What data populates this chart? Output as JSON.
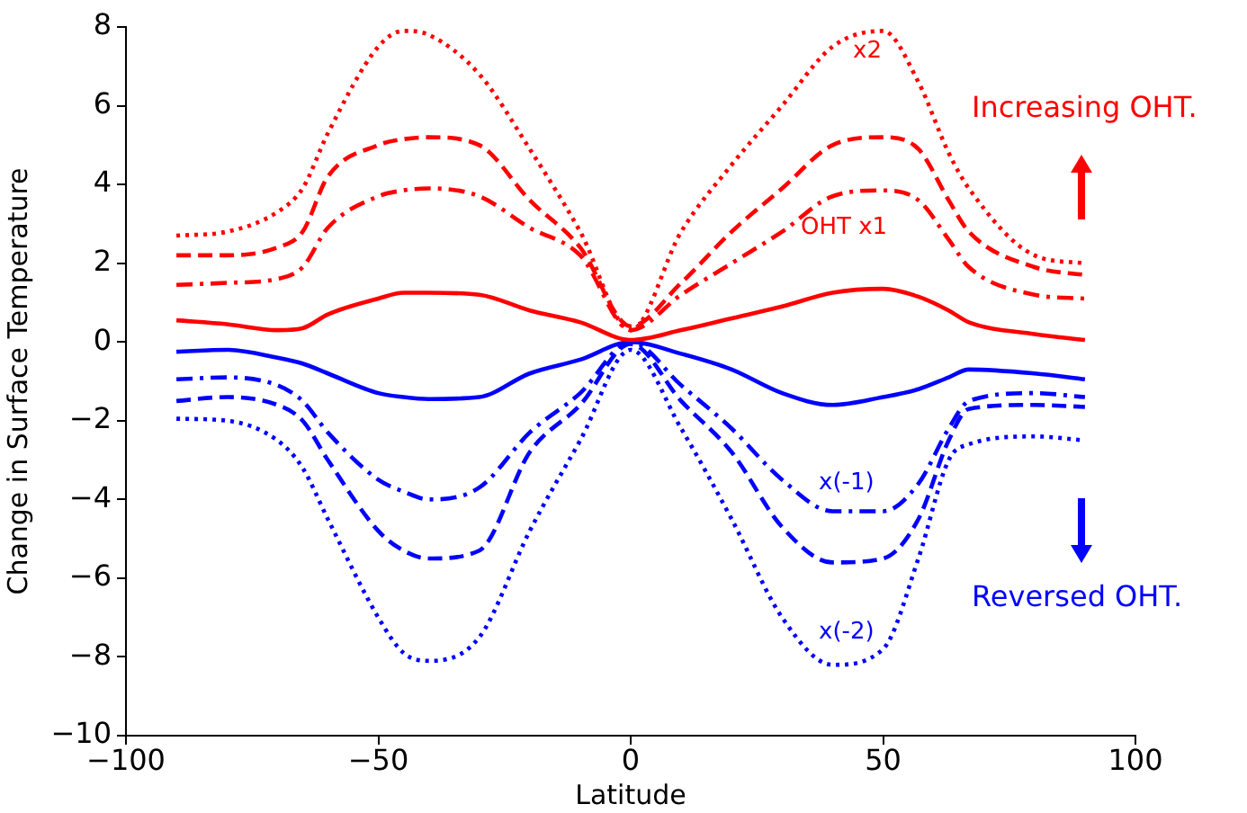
{
  "chart_data": {
    "type": "line",
    "xlabel": "Latitude",
    "ylabel": "Change in Surface Temperature",
    "xlim": [
      -100,
      100
    ],
    "xticks": [
      -100,
      -50,
      0,
      50,
      100
    ],
    "ylim": [
      -10,
      8
    ],
    "yticks": [
      -10,
      -8,
      -6,
      -4,
      -2,
      0,
      2,
      4,
      6,
      8
    ],
    "grid": false,
    "legend": false,
    "marker": "none",
    "x": [
      -90,
      -80,
      -70,
      -65,
      -60,
      -50,
      -45,
      -40,
      -30,
      -20,
      -10,
      0,
      10,
      20,
      30,
      40,
      50,
      57,
      63,
      67,
      80,
      90
    ],
    "series": [
      {
        "color": "#ff0000",
        "line_style": "solid",
        "values": [
          0.55,
          0.45,
          0.3,
          0.35,
          0.7,
          1.1,
          1.25,
          1.25,
          1.2,
          0.8,
          0.5,
          0.05,
          0.3,
          0.6,
          0.9,
          1.25,
          1.35,
          1.15,
          0.8,
          0.5,
          0.2,
          0.05
        ]
      },
      {
        "color": "#ff0000",
        "line_style": "dashdot",
        "values": [
          1.45,
          1.5,
          1.6,
          1.9,
          2.9,
          3.7,
          3.85,
          3.9,
          3.7,
          2.9,
          2.2,
          0.3,
          1.2,
          2.0,
          2.8,
          3.7,
          3.85,
          3.6,
          2.6,
          1.9,
          1.2,
          1.1
        ]
      },
      {
        "color": "#ff0000",
        "line_style": "dashed",
        "values": [
          2.2,
          2.2,
          2.4,
          2.8,
          4.2,
          5.0,
          5.15,
          5.2,
          5.0,
          3.6,
          2.4,
          0.4,
          1.5,
          2.8,
          3.9,
          5.0,
          5.2,
          4.9,
          3.6,
          2.8,
          1.9,
          1.7
        ]
      },
      {
        "color": "#ff0000",
        "line_style": "dotted",
        "values": [
          2.7,
          2.8,
          3.3,
          3.9,
          5.3,
          7.5,
          7.9,
          7.8,
          6.8,
          4.9,
          2.8,
          0.3,
          2.8,
          4.5,
          6.0,
          7.5,
          7.9,
          6.6,
          4.8,
          3.9,
          2.2,
          2.0
        ]
      },
      {
        "color": "#0000ff",
        "line_style": "solid",
        "values": [
          -0.25,
          -0.2,
          -0.4,
          -0.55,
          -0.8,
          -1.3,
          -1.4,
          -1.45,
          -1.4,
          -0.8,
          -0.45,
          0.0,
          -0.3,
          -0.7,
          -1.3,
          -1.6,
          -1.4,
          -1.2,
          -0.9,
          -0.7,
          -0.8,
          -0.95
        ]
      },
      {
        "color": "#0000ff",
        "line_style": "dashdot",
        "values": [
          -0.95,
          -0.9,
          -1.1,
          -1.5,
          -2.3,
          -3.5,
          -3.8,
          -4.0,
          -3.7,
          -2.3,
          -1.3,
          0.0,
          -1.1,
          -2.2,
          -3.5,
          -4.3,
          -4.3,
          -3.6,
          -2.2,
          -1.5,
          -1.3,
          -1.4
        ]
      },
      {
        "color": "#0000ff",
        "line_style": "dashed",
        "values": [
          -1.5,
          -1.4,
          -1.6,
          -2.0,
          -3.0,
          -4.8,
          -5.3,
          -5.5,
          -5.3,
          -2.8,
          -1.6,
          -0.05,
          -1.5,
          -2.8,
          -4.7,
          -5.6,
          -5.5,
          -4.5,
          -2.5,
          -1.7,
          -1.6,
          -1.65
        ]
      },
      {
        "color": "#0000ff",
        "line_style": "dotted",
        "values": [
          -1.95,
          -2.0,
          -2.5,
          -3.2,
          -4.5,
          -7.0,
          -7.9,
          -8.1,
          -7.5,
          -4.8,
          -2.5,
          -0.2,
          -2.2,
          -4.5,
          -7.0,
          -8.2,
          -7.8,
          -5.5,
          -3.0,
          -2.6,
          -2.4,
          -2.5
        ]
      }
    ],
    "annotations": [
      "x2",
      "OHT x1",
      "x(-1)",
      "x(-2)",
      "Increasing OHT.",
      "Reversed OHT."
    ]
  }
}
